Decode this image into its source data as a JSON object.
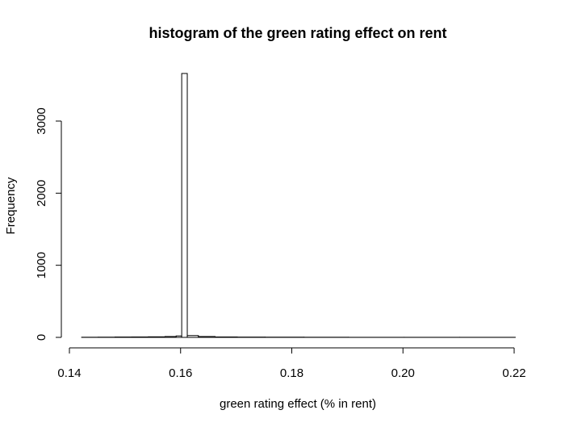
{
  "chart_data": {
    "type": "bar",
    "subtype": "histogram",
    "title": "histogram of the green rating effect on rent",
    "xlabel": "green rating effect (% in rent)",
    "ylabel": "Frequency",
    "xlim": [
      0.14,
      0.22
    ],
    "ylim": [
      0,
      3700
    ],
    "x_ticks": [
      0.14,
      0.16,
      0.18,
      0.2,
      0.22
    ],
    "x_tick_labels": [
      "0.14",
      "0.16",
      "0.18",
      "0.20",
      "0.22"
    ],
    "y_ticks": [
      0,
      1000,
      2000,
      3000
    ],
    "y_tick_labels": [
      "0",
      "1000",
      "2000",
      "3000"
    ],
    "grid": false,
    "legend": "none",
    "bar_fill": "#ffffff",
    "bar_stroke": "#000000",
    "bins": [
      {
        "x0": 0.1422,
        "x1": 0.1452,
        "count": 2
      },
      {
        "x0": 0.1452,
        "x1": 0.1482,
        "count": 3
      },
      {
        "x0": 0.1482,
        "x1": 0.1512,
        "count": 5
      },
      {
        "x0": 0.1512,
        "x1": 0.1542,
        "count": 6
      },
      {
        "x0": 0.1542,
        "x1": 0.1572,
        "count": 8
      },
      {
        "x0": 0.1572,
        "x1": 0.1592,
        "count": 12
      },
      {
        "x0": 0.1592,
        "x1": 0.1602,
        "count": 20
      },
      {
        "x0": 0.1602,
        "x1": 0.1612,
        "count": 3660
      },
      {
        "x0": 0.1612,
        "x1": 0.1632,
        "count": 25
      },
      {
        "x0": 0.1632,
        "x1": 0.1662,
        "count": 12
      },
      {
        "x0": 0.1662,
        "x1": 0.1702,
        "count": 6
      },
      {
        "x0": 0.1702,
        "x1": 0.1752,
        "count": 4
      },
      {
        "x0": 0.1752,
        "x1": 0.1822,
        "count": 3
      },
      {
        "x0": 0.1822,
        "x1": 0.1902,
        "count": 2
      },
      {
        "x0": 0.1902,
        "x1": 0.2002,
        "count": 1
      },
      {
        "x0": 0.2002,
        "x1": 0.2102,
        "count": 1
      },
      {
        "x0": 0.2102,
        "x1": 0.2202,
        "count": 1
      }
    ]
  }
}
